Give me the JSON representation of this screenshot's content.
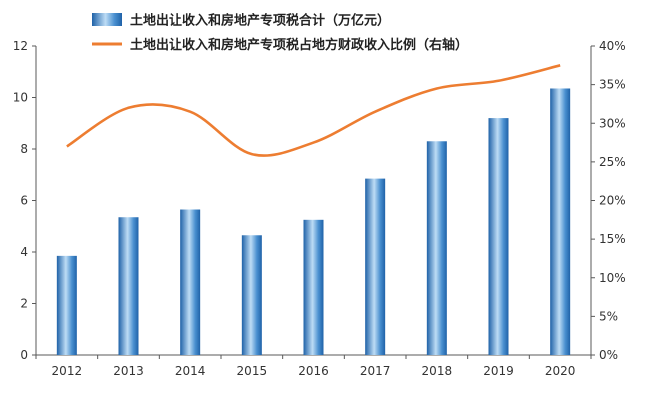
{
  "chart_data": {
    "type": "bar",
    "categories": [
      "2012",
      "2013",
      "2014",
      "2015",
      "2016",
      "2017",
      "2018",
      "2019",
      "2020"
    ],
    "series": [
      {
        "name": "土地出让收入和房地产专项税合计（万亿元）",
        "type": "bar",
        "axis": "left",
        "values": [
          3.85,
          5.35,
          5.65,
          4.65,
          5.25,
          6.85,
          8.3,
          9.2,
          10.35
        ]
      },
      {
        "name": "土地出让收入和房地产专项税占地方财政收入比例（右轴）",
        "type": "line",
        "axis": "right",
        "values": [
          27.0,
          32.0,
          31.5,
          26.0,
          27.5,
          31.5,
          34.5,
          35.5,
          37.5
        ]
      }
    ],
    "y_left": {
      "lim": [
        0,
        12
      ],
      "ticks": [
        "0",
        "2",
        "4",
        "6",
        "8",
        "10",
        "12"
      ]
    },
    "y_right": {
      "lim": [
        0,
        40
      ],
      "ticks": [
        "0%",
        "5%",
        "10%",
        "15%",
        "20%",
        "25%",
        "30%",
        "35%",
        "40%"
      ]
    },
    "grid": false,
    "legend_position": "top",
    "colors": {
      "bar": "#4a90d0",
      "bar_dark": "#1f62a8",
      "bar_light": "#bddcf5",
      "line": "#ed7d31",
      "axis": "#595959"
    }
  }
}
